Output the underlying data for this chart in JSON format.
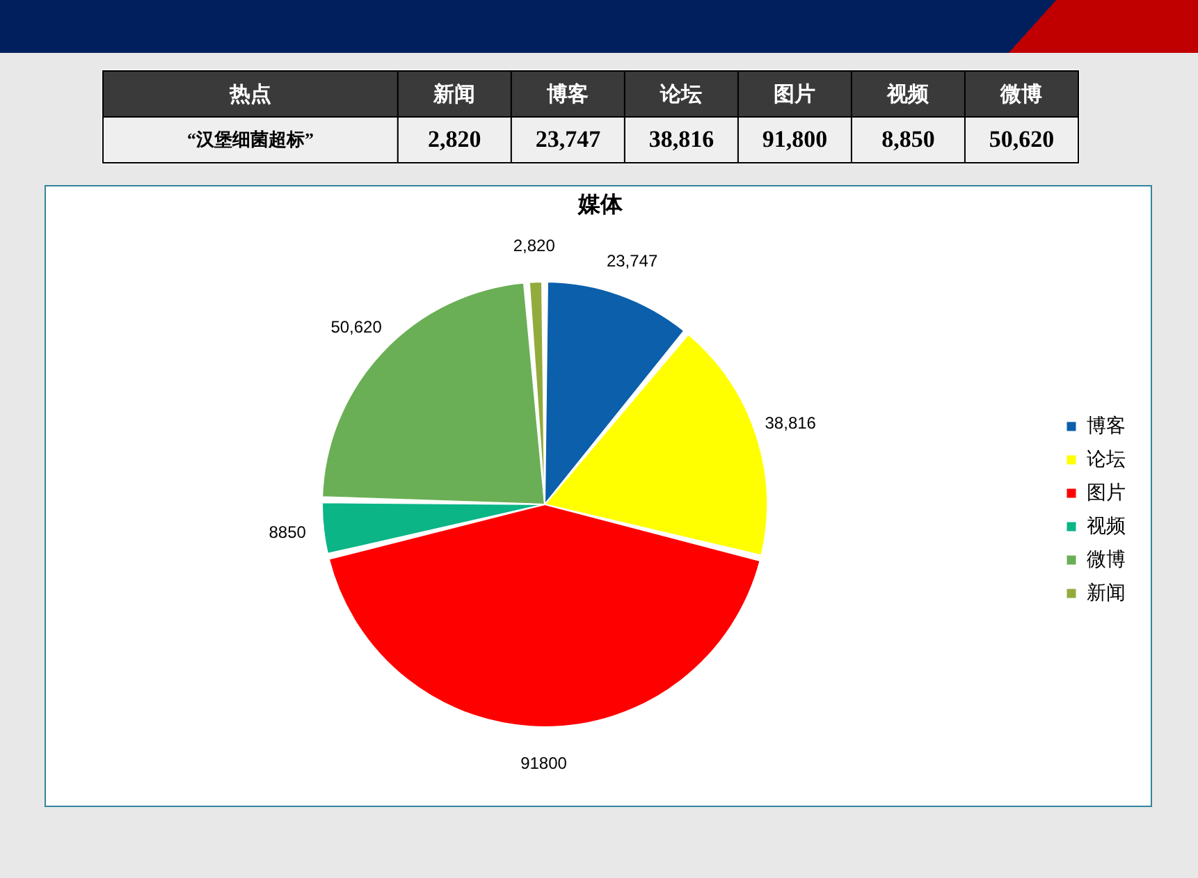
{
  "chart_data": [
    {
      "type": "other",
      "ylabel": "热点",
      "y_categories": [
        "“汉堡细菌超标”"
      ],
      "categories": [
        "新闻",
        "博客",
        "论坛",
        "图片",
        "视频",
        "微博"
      ],
      "values": [
        2820,
        23747,
        38816,
        91800,
        8850,
        50620
      ],
      "value_labels": [
        "2,820",
        "23,747",
        "38,816",
        "91,800",
        "8,850",
        "50,620"
      ]
    },
    {
      "type": "pie",
      "title": "媒体",
      "categories": [
        "博客",
        "论坛",
        "图片",
        "视频",
        "微博",
        "新闻"
      ],
      "values": [
        23747,
        38816,
        91800,
        8850,
        50620,
        2820
      ],
      "colors": [
        "#0b5fab",
        "#ffff00",
        "#ff0000",
        "#0bb586",
        "#6aaf55",
        "#92ab3c"
      ],
      "value_labels": [
        "23,747",
        "38,816",
        "91800",
        "8850",
        "50,620",
        "2,820"
      ],
      "legend": "right"
    }
  ]
}
